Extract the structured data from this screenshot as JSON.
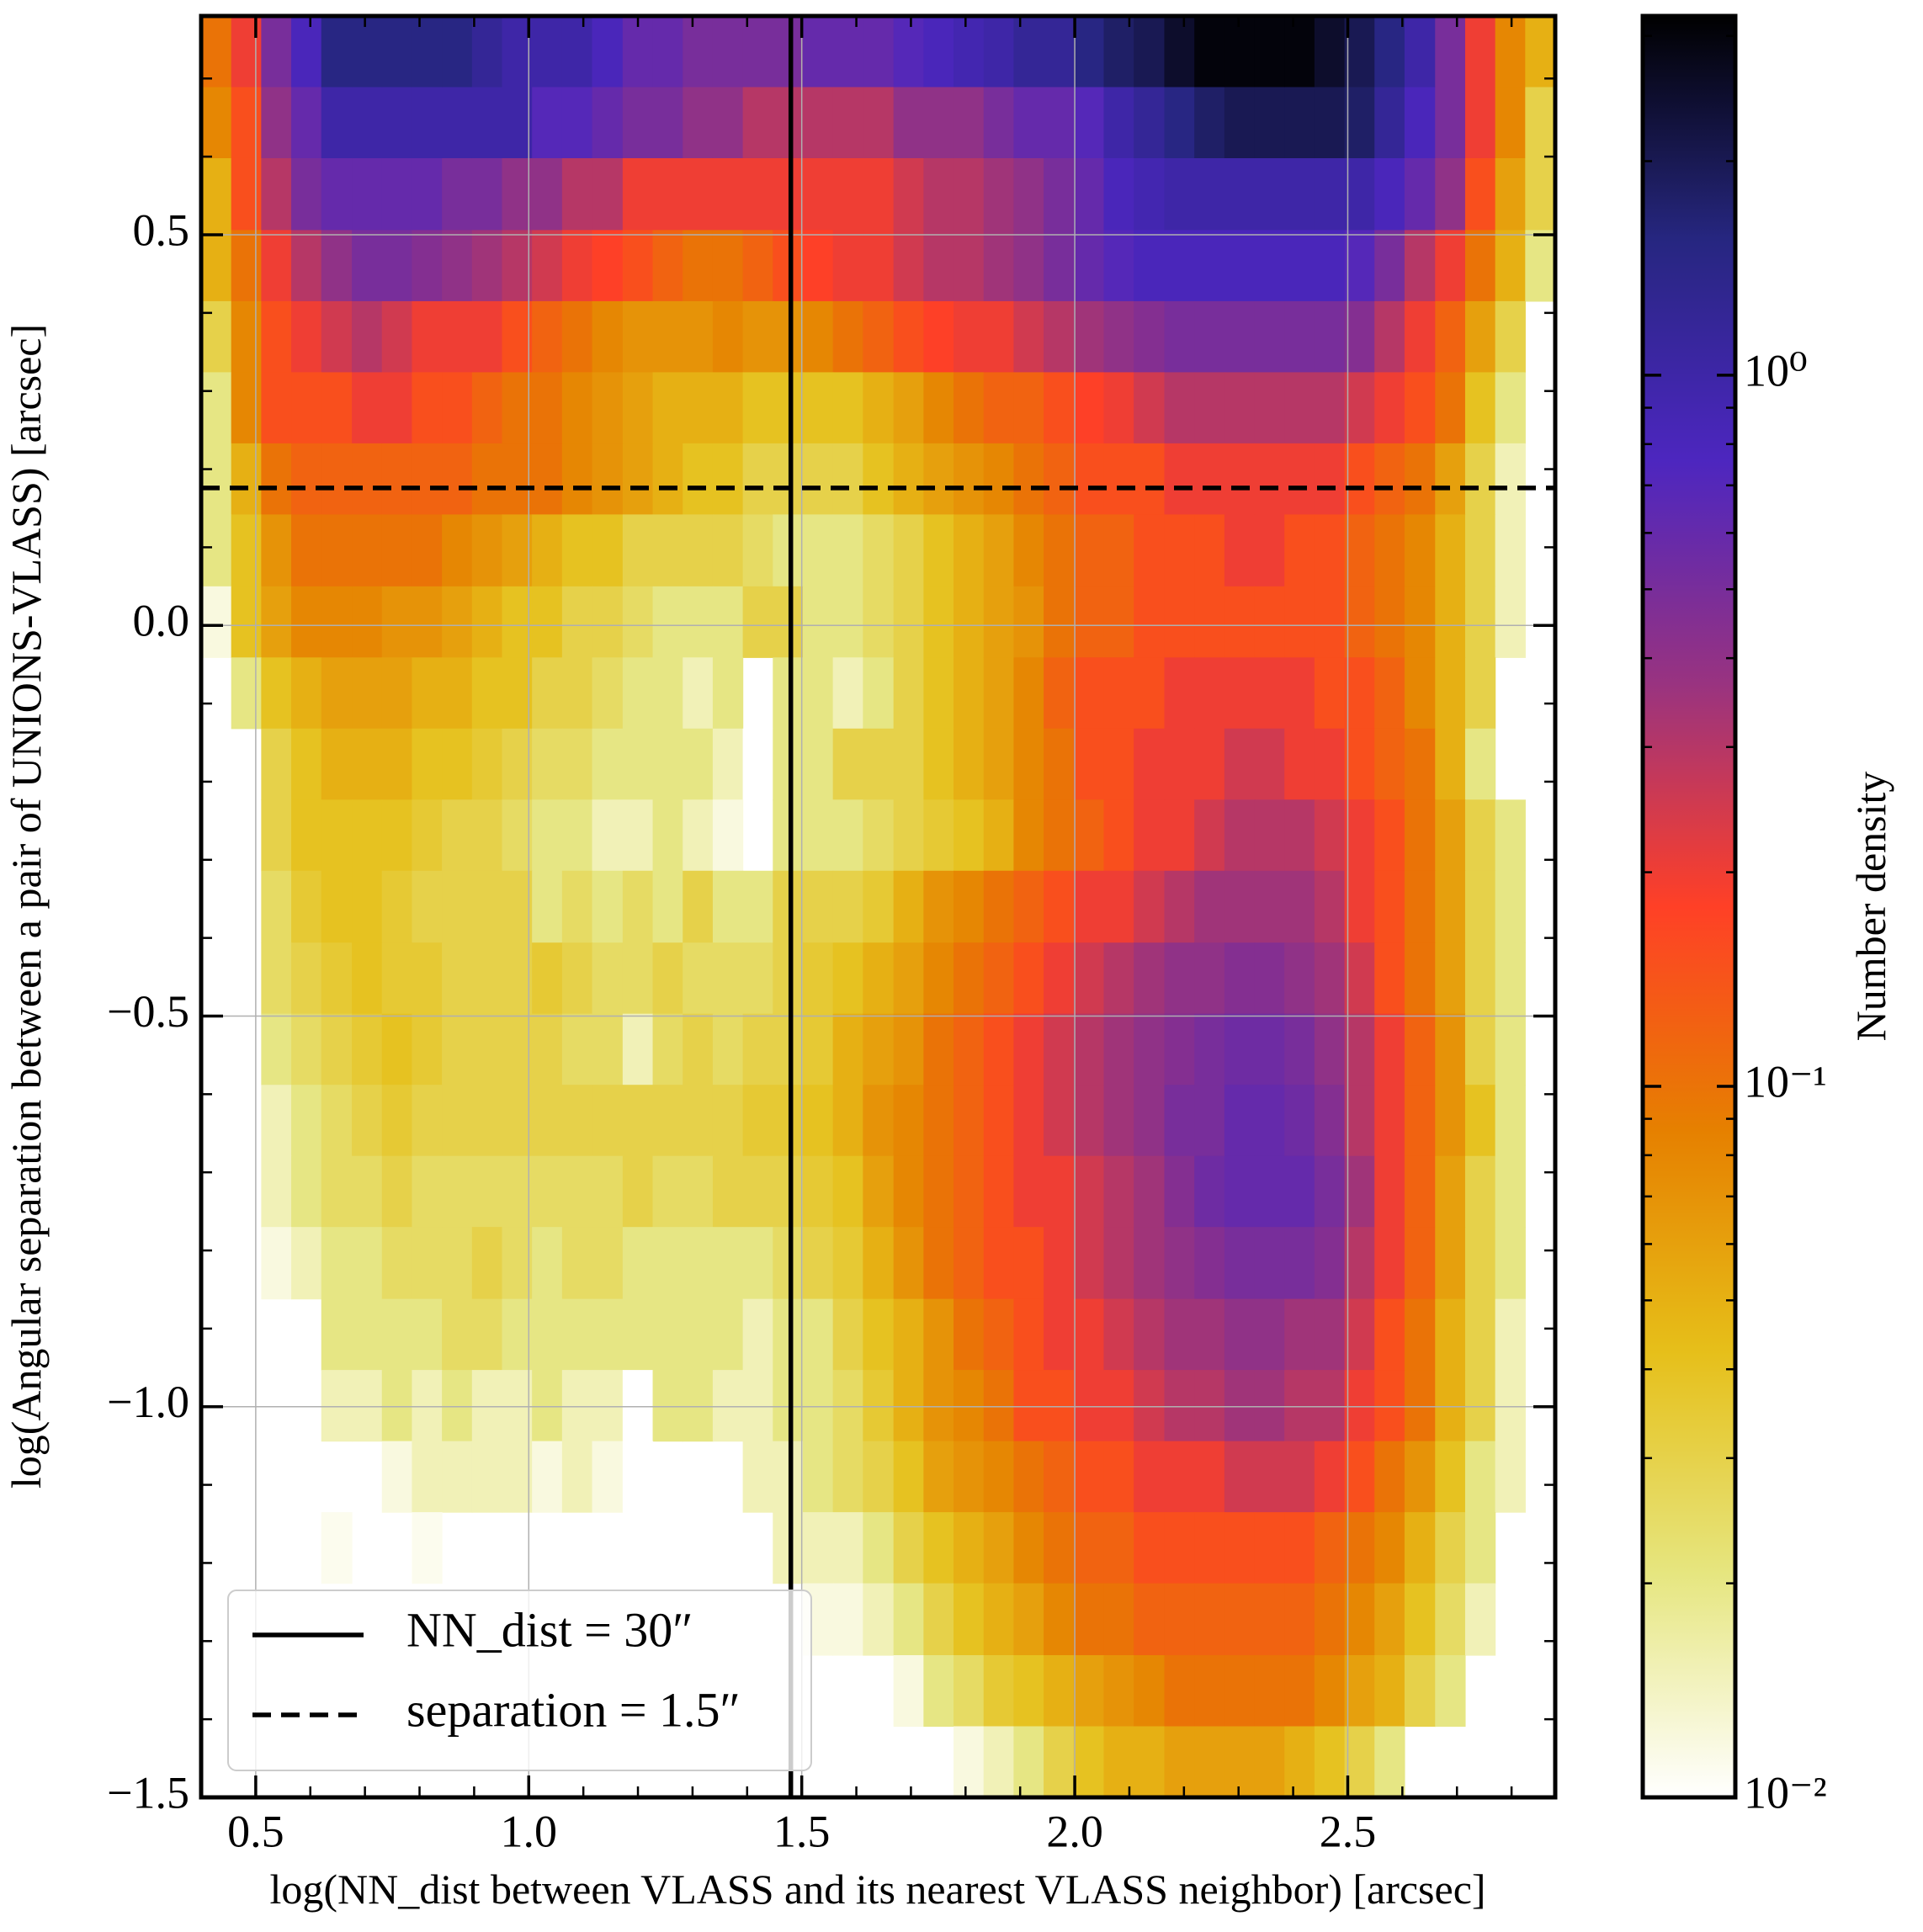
{
  "chart_data": {
    "type": "heatmap",
    "xlabel": "log(NN_dist between VLASS and its nearest VLASS neighbor) [arcsec]",
    "ylabel": "log(Angular separation between a pair of UNIONS-VLASS) [arcsec]",
    "colorbar_label": "Number density",
    "colormap": "CMRmap_r",
    "color_scale": "log",
    "clim": [
      0.01,
      3.2
    ],
    "cticks": [
      {
        "value": 0.01,
        "label": "10⁻²"
      },
      {
        "value": 0.1,
        "label": "10⁻¹"
      },
      {
        "value": 1,
        "label": "10⁰"
      }
    ],
    "xlim": [
      0.4,
      2.88
    ],
    "ylim": [
      -1.5,
      0.78
    ],
    "xticks": [
      0.5,
      {
        "value": 1,
        "label": "1.0"
      },
      1.5,
      {
        "value": 2,
        "label": "2.0"
      },
      2.5
    ],
    "yticks": [
      {
        "value": -1.5,
        "label": "−1.5"
      },
      {
        "value": -1,
        "label": "−1.0"
      },
      {
        "value": -0.5,
        "label": "−0.5"
      },
      {
        "value": 0,
        "label": "0.0"
      },
      0.5
    ],
    "grid": true,
    "legend_position": "lower left",
    "x_edges": [
      0.4,
      0.455,
      0.51,
      0.565,
      0.62,
      0.676,
      0.731,
      0.786,
      0.841,
      0.896,
      0.951,
      1.006,
      1.061,
      1.116,
      1.172,
      1.227,
      1.282,
      1.337,
      1.392,
      1.447,
      1.502,
      1.557,
      1.612,
      1.668,
      1.723,
      1.778,
      1.833,
      1.888,
      1.943,
      1.998,
      2.053,
      2.108,
      2.164,
      2.219,
      2.274,
      2.329,
      2.384,
      2.439,
      2.494,
      2.549,
      2.604,
      2.66,
      2.715,
      2.77,
      2.825,
      2.88
    ],
    "y_edges": [
      0.78,
      0.689,
      0.598,
      0.506,
      0.415,
      0.324,
      0.233,
      0.142,
      0.05,
      -0.041,
      -0.132,
      -0.223,
      -0.314,
      -0.406,
      -0.497,
      -0.588,
      -0.679,
      -0.77,
      -0.862,
      -0.953,
      -1.044,
      -1.135,
      -1.226,
      -1.318,
      -1.409,
      -1.5
    ],
    "z": [
      [
        0.1,
        0.2,
        0.5,
        0.8,
        1.5,
        1.5,
        1.5,
        1.5,
        1.5,
        1.2,
        1.0,
        1.0,
        1.0,
        0.8,
        0.6,
        0.6,
        0.5,
        0.5,
        0.5,
        0.5,
        0.6,
        0.6,
        0.6,
        0.7,
        0.8,
        0.9,
        1.0,
        1.2,
        1.2,
        1.5,
        1.8,
        2,
        2.5,
        3,
        3,
        3,
        3,
        2.5,
        2,
        1.5,
        1.0,
        0.5,
        0.2,
        0.08,
        0.05
      ],
      [
        0.08,
        0.15,
        0.4,
        0.6,
        1.0,
        1.0,
        1.0,
        1.0,
        1.0,
        1.0,
        1.0,
        0.7,
        0.7,
        0.6,
        0.5,
        0.5,
        0.4,
        0.4,
        0.3,
        0.3,
        0.3,
        0.3,
        0.3,
        0.4,
        0.4,
        0.4,
        0.5,
        0.6,
        0.6,
        0.7,
        1.0,
        1.2,
        1.5,
        1.8,
        2,
        2,
        2,
        2,
        1.8,
        1.2,
        0.8,
        0.5,
        0.2,
        0.08,
        0.03
      ],
      [
        0.05,
        0.15,
        0.3,
        0.5,
        0.6,
        0.6,
        0.6,
        0.6,
        0.5,
        0.5,
        0.4,
        0.4,
        0.3,
        0.3,
        0.2,
        0.2,
        0.2,
        0.2,
        0.2,
        0.2,
        0.2,
        0.2,
        0.2,
        0.25,
        0.3,
        0.3,
        0.35,
        0.4,
        0.5,
        0.6,
        0.8,
        0.9,
        1.0,
        1.0,
        1.0,
        1.0,
        1.0,
        1.0,
        1.0,
        0.8,
        0.6,
        0.4,
        0.15,
        0.06,
        0.03
      ],
      [
        0.05,
        0.1,
        0.2,
        0.3,
        0.4,
        0.5,
        0.5,
        0.45,
        0.4,
        0.35,
        0.3,
        0.25,
        0.2,
        0.18,
        0.15,
        0.12,
        0.1,
        0.1,
        0.12,
        0.15,
        0.18,
        0.2,
        0.2,
        0.25,
        0.3,
        0.3,
        0.35,
        0.4,
        0.5,
        0.6,
        0.7,
        0.8,
        0.8,
        0.8,
        0.8,
        0.8,
        0.8,
        0.8,
        0.7,
        0.5,
        0.3,
        0.2,
        0.1,
        0.05,
        0.02
      ],
      [
        0.03,
        0.08,
        0.15,
        0.2,
        0.25,
        0.3,
        0.25,
        0.2,
        0.2,
        0.2,
        0.15,
        0.12,
        0.1,
        0.08,
        0.07,
        0.07,
        0.07,
        0.08,
        0.07,
        0.07,
        0.08,
        0.1,
        0.12,
        0.15,
        0.18,
        0.2,
        0.2,
        0.25,
        0.3,
        0.35,
        0.4,
        0.45,
        0.5,
        0.5,
        0.5,
        0.5,
        0.5,
        0.5,
        0.45,
        0.3,
        0.2,
        0.12,
        0.06,
        0.03,
        null
      ],
      [
        0.02,
        0.08,
        0.15,
        0.15,
        0.15,
        0.2,
        0.2,
        0.15,
        0.15,
        0.12,
        0.1,
        0.1,
        0.08,
        0.07,
        0.06,
        0.05,
        0.05,
        0.05,
        0.04,
        0.04,
        0.04,
        0.04,
        0.05,
        0.06,
        0.08,
        0.1,
        0.12,
        0.12,
        0.15,
        0.18,
        0.2,
        0.25,
        0.3,
        0.3,
        0.3,
        0.3,
        0.3,
        0.3,
        0.25,
        0.2,
        0.15,
        0.1,
        0.04,
        0.02,
        null
      ],
      [
        0.02,
        0.05,
        0.1,
        0.12,
        0.12,
        0.12,
        0.12,
        0.12,
        0.12,
        0.1,
        0.1,
        0.1,
        0.08,
        0.07,
        0.06,
        0.05,
        0.04,
        0.04,
        0.03,
        0.03,
        0.03,
        0.03,
        0.04,
        0.05,
        0.06,
        0.07,
        0.08,
        0.1,
        0.12,
        0.15,
        0.15,
        0.15,
        0.2,
        0.2,
        0.2,
        0.2,
        0.2,
        0.2,
        0.15,
        0.12,
        0.1,
        0.06,
        0.03,
        0.015,
        null
      ],
      [
        0.02,
        0.04,
        0.07,
        0.1,
        0.1,
        0.1,
        0.1,
        0.1,
        0.08,
        0.07,
        0.06,
        0.05,
        0.04,
        0.04,
        0.03,
        0.03,
        0.03,
        0.03,
        0.025,
        0.02,
        0.02,
        0.02,
        0.025,
        0.03,
        0.04,
        0.05,
        0.06,
        0.08,
        0.1,
        0.12,
        0.12,
        0.15,
        0.15,
        0.15,
        0.2,
        0.2,
        0.15,
        0.15,
        0.12,
        0.1,
        0.08,
        0.05,
        0.03,
        0.015,
        null
      ],
      [
        0.012,
        0.04,
        0.06,
        0.08,
        0.08,
        0.08,
        0.07,
        0.07,
        0.06,
        0.05,
        0.04,
        0.04,
        0.03,
        0.03,
        0.025,
        0.02,
        0.02,
        0.02,
        0.03,
        0.03,
        0.02,
        0.02,
        0.025,
        0.03,
        0.04,
        0.05,
        0.06,
        0.07,
        0.1,
        0.12,
        0.12,
        0.15,
        0.15,
        0.15,
        0.15,
        0.15,
        0.15,
        0.15,
        0.12,
        0.1,
        0.08,
        0.05,
        0.03,
        0.015,
        null
      ],
      [
        null,
        0.02,
        0.04,
        0.05,
        0.06,
        0.06,
        0.06,
        0.05,
        0.05,
        0.04,
        0.04,
        0.03,
        0.03,
        0.025,
        0.02,
        0.02,
        0.015,
        0.02,
        null,
        0.02,
        0.02,
        0.015,
        0.02,
        0.03,
        0.04,
        0.05,
        0.06,
        0.08,
        0.12,
        0.15,
        0.15,
        0.15,
        0.2,
        0.2,
        0.2,
        0.2,
        0.2,
        0.15,
        0.15,
        0.12,
        0.08,
        0.05,
        0.03,
        null,
        null
      ],
      [
        null,
        null,
        0.03,
        0.04,
        0.05,
        0.05,
        0.05,
        0.04,
        0.04,
        0.035,
        0.03,
        0.025,
        0.025,
        0.02,
        0.02,
        0.02,
        0.02,
        0.015,
        0.01,
        0.02,
        0.02,
        0.03,
        0.03,
        0.03,
        0.04,
        0.05,
        0.06,
        0.08,
        0.1,
        0.15,
        0.15,
        0.2,
        0.2,
        0.2,
        0.25,
        0.25,
        0.2,
        0.2,
        0.15,
        0.12,
        0.1,
        0.05,
        0.02,
        null,
        null
      ],
      [
        null,
        null,
        0.03,
        0.04,
        0.04,
        0.04,
        0.04,
        0.035,
        0.03,
        0.03,
        0.025,
        0.02,
        0.02,
        0.015,
        0.015,
        0.02,
        0.015,
        0.012,
        null,
        0.02,
        0.02,
        0.02,
        0.025,
        0.03,
        0.035,
        0.04,
        0.05,
        0.08,
        0.1,
        0.12,
        0.15,
        0.2,
        0.2,
        0.25,
        0.3,
        0.3,
        0.3,
        0.25,
        0.2,
        0.15,
        0.1,
        0.06,
        0.03,
        0.02,
        null
      ],
      [
        null,
        null,
        0.025,
        0.035,
        0.04,
        0.04,
        0.035,
        0.03,
        0.03,
        0.03,
        0.03,
        0.02,
        0.025,
        0.02,
        0.025,
        0.02,
        0.03,
        0.02,
        0.02,
        0.03,
        0.03,
        0.03,
        0.035,
        0.05,
        0.07,
        0.08,
        0.1,
        0.12,
        0.15,
        0.2,
        0.2,
        0.25,
        0.3,
        0.35,
        0.35,
        0.35,
        0.35,
        0.3,
        0.2,
        0.15,
        0.1,
        0.06,
        0.03,
        0.02,
        null
      ],
      [
        null,
        null,
        0.025,
        0.03,
        0.035,
        0.04,
        0.035,
        0.035,
        0.03,
        0.03,
        0.03,
        0.035,
        0.03,
        0.025,
        0.025,
        0.03,
        0.025,
        0.025,
        0.025,
        0.03,
        0.035,
        0.04,
        0.05,
        0.06,
        0.08,
        0.1,
        0.12,
        0.15,
        0.2,
        0.25,
        0.3,
        0.35,
        0.4,
        0.4,
        0.45,
        0.45,
        0.4,
        0.35,
        0.25,
        0.15,
        0.1,
        0.06,
        0.03,
        0.02,
        null
      ],
      [
        null,
        null,
        0.02,
        0.025,
        0.03,
        0.035,
        0.04,
        0.035,
        0.03,
        0.03,
        0.03,
        0.03,
        0.025,
        0.025,
        0.015,
        0.025,
        0.03,
        0.025,
        0.03,
        0.03,
        0.035,
        0.05,
        0.06,
        0.07,
        0.1,
        0.12,
        0.15,
        0.2,
        0.25,
        0.3,
        0.35,
        0.4,
        0.45,
        0.5,
        0.55,
        0.55,
        0.5,
        0.4,
        0.3,
        0.2,
        0.12,
        0.07,
        0.03,
        0.02,
        null
      ],
      [
        null,
        null,
        0.015,
        0.02,
        0.025,
        0.03,
        0.035,
        0.03,
        0.03,
        0.03,
        0.03,
        0.03,
        0.03,
        0.03,
        0.03,
        0.03,
        0.03,
        0.03,
        0.035,
        0.035,
        0.04,
        0.05,
        0.07,
        0.08,
        0.1,
        0.12,
        0.15,
        0.2,
        0.25,
        0.3,
        0.35,
        0.4,
        0.5,
        0.5,
        0.6,
        0.6,
        0.55,
        0.45,
        0.3,
        0.2,
        0.12,
        0.07,
        0.04,
        0.02,
        null
      ],
      [
        null,
        null,
        0.015,
        0.02,
        0.025,
        0.025,
        0.03,
        0.025,
        0.025,
        0.025,
        0.025,
        0.025,
        0.025,
        0.025,
        0.03,
        0.025,
        0.025,
        0.03,
        0.03,
        0.03,
        0.035,
        0.04,
        0.06,
        0.08,
        0.1,
        0.12,
        0.15,
        0.2,
        0.2,
        0.25,
        0.3,
        0.35,
        0.45,
        0.55,
        0.6,
        0.6,
        0.6,
        0.5,
        0.35,
        0.2,
        0.12,
        0.06,
        0.03,
        0.02,
        null
      ],
      [
        null,
        null,
        0.012,
        0.015,
        0.02,
        0.02,
        0.025,
        0.025,
        0.025,
        0.03,
        0.025,
        0.02,
        0.025,
        0.025,
        0.02,
        0.02,
        0.02,
        0.02,
        0.02,
        0.025,
        0.03,
        0.035,
        0.05,
        0.07,
        0.1,
        0.12,
        0.15,
        0.15,
        0.2,
        0.25,
        0.3,
        0.35,
        0.4,
        0.45,
        0.5,
        0.5,
        0.5,
        0.45,
        0.3,
        0.2,
        0.12,
        0.06,
        0.03,
        0.02,
        null
      ],
      [
        null,
        null,
        null,
        null,
        0.02,
        0.02,
        0.02,
        0.02,
        0.025,
        0.025,
        0.02,
        0.02,
        0.02,
        0.02,
        0.02,
        0.02,
        0.02,
        0.02,
        0.015,
        0.02,
        0.02,
        0.03,
        0.04,
        0.05,
        0.07,
        0.1,
        0.12,
        0.15,
        0.2,
        0.2,
        0.25,
        0.3,
        0.35,
        0.35,
        0.4,
        0.4,
        0.35,
        0.35,
        0.25,
        0.15,
        0.1,
        0.05,
        0.03,
        0.015,
        null
      ],
      [
        null,
        null,
        null,
        null,
        0.015,
        0.015,
        0.02,
        0.015,
        0.02,
        0.015,
        0.015,
        0.02,
        0.015,
        0.015,
        0.01,
        0.02,
        0.02,
        0.015,
        0.015,
        0.02,
        0.02,
        0.025,
        0.035,
        0.05,
        0.07,
        0.08,
        0.1,
        0.15,
        0.15,
        0.2,
        0.2,
        0.25,
        0.3,
        0.3,
        0.35,
        0.35,
        0.3,
        0.3,
        0.2,
        0.15,
        0.1,
        0.05,
        0.03,
        0.015,
        null
      ],
      [
        null,
        null,
        null,
        null,
        null,
        null,
        0.012,
        0.015,
        0.015,
        0.015,
        0.015,
        0.012,
        0.015,
        0.012,
        0.01,
        null,
        null,
        null,
        0.015,
        0.015,
        0.02,
        0.025,
        0.03,
        0.04,
        0.06,
        0.07,
        0.08,
        0.1,
        0.12,
        0.15,
        0.15,
        0.2,
        0.2,
        0.2,
        0.25,
        0.25,
        0.25,
        0.2,
        0.15,
        0.1,
        0.07,
        0.04,
        0.02,
        0.015,
        null
      ],
      [
        null,
        null,
        null,
        null,
        0.011,
        null,
        null,
        0.011,
        null,
        null,
        null,
        null,
        null,
        null,
        null,
        null,
        null,
        null,
        null,
        0.015,
        0.015,
        0.015,
        0.02,
        0.03,
        0.04,
        0.05,
        0.06,
        0.08,
        0.1,
        0.12,
        0.12,
        0.15,
        0.15,
        0.15,
        0.15,
        0.15,
        0.15,
        0.12,
        0.1,
        0.08,
        0.05,
        0.03,
        0.02,
        null,
        null
      ],
      [
        null,
        null,
        null,
        null,
        null,
        null,
        null,
        null,
        null,
        null,
        null,
        null,
        null,
        null,
        null,
        null,
        null,
        null,
        null,
        null,
        0.012,
        0.012,
        0.015,
        0.02,
        0.03,
        0.04,
        0.05,
        0.06,
        0.08,
        0.1,
        0.1,
        0.12,
        0.12,
        0.12,
        0.12,
        0.12,
        0.12,
        0.1,
        0.08,
        0.06,
        0.04,
        0.025,
        0.015,
        null,
        null
      ],
      [
        null,
        null,
        null,
        null,
        null,
        null,
        null,
        null,
        null,
        null,
        null,
        null,
        null,
        null,
        null,
        null,
        null,
        null,
        null,
        null,
        null,
        null,
        null,
        0.012,
        0.02,
        0.025,
        0.035,
        0.04,
        0.05,
        0.06,
        0.07,
        0.08,
        0.1,
        0.1,
        0.1,
        0.1,
        0.1,
        0.08,
        0.06,
        0.05,
        0.03,
        0.02,
        null,
        null,
        null
      ],
      [
        null,
        null,
        null,
        null,
        null,
        null,
        null,
        null,
        null,
        null,
        null,
        null,
        null,
        null,
        null,
        null,
        null,
        null,
        null,
        null,
        null,
        null,
        null,
        null,
        null,
        0.012,
        0.015,
        0.02,
        0.03,
        0.04,
        0.05,
        0.05,
        0.06,
        0.06,
        0.06,
        0.06,
        0.05,
        0.04,
        0.03,
        0.02,
        null,
        null,
        null,
        null,
        null
      ]
    ],
    "lines": [
      {
        "name": "NN_dist = 30″",
        "orientation": "vertical",
        "x": 1.48,
        "color": "#000000",
        "style": "solid"
      },
      {
        "name": "separation = 1.5″",
        "orientation": "horizontal",
        "y": 0.176,
        "color": "#000000",
        "style": "dashed"
      }
    ]
  }
}
